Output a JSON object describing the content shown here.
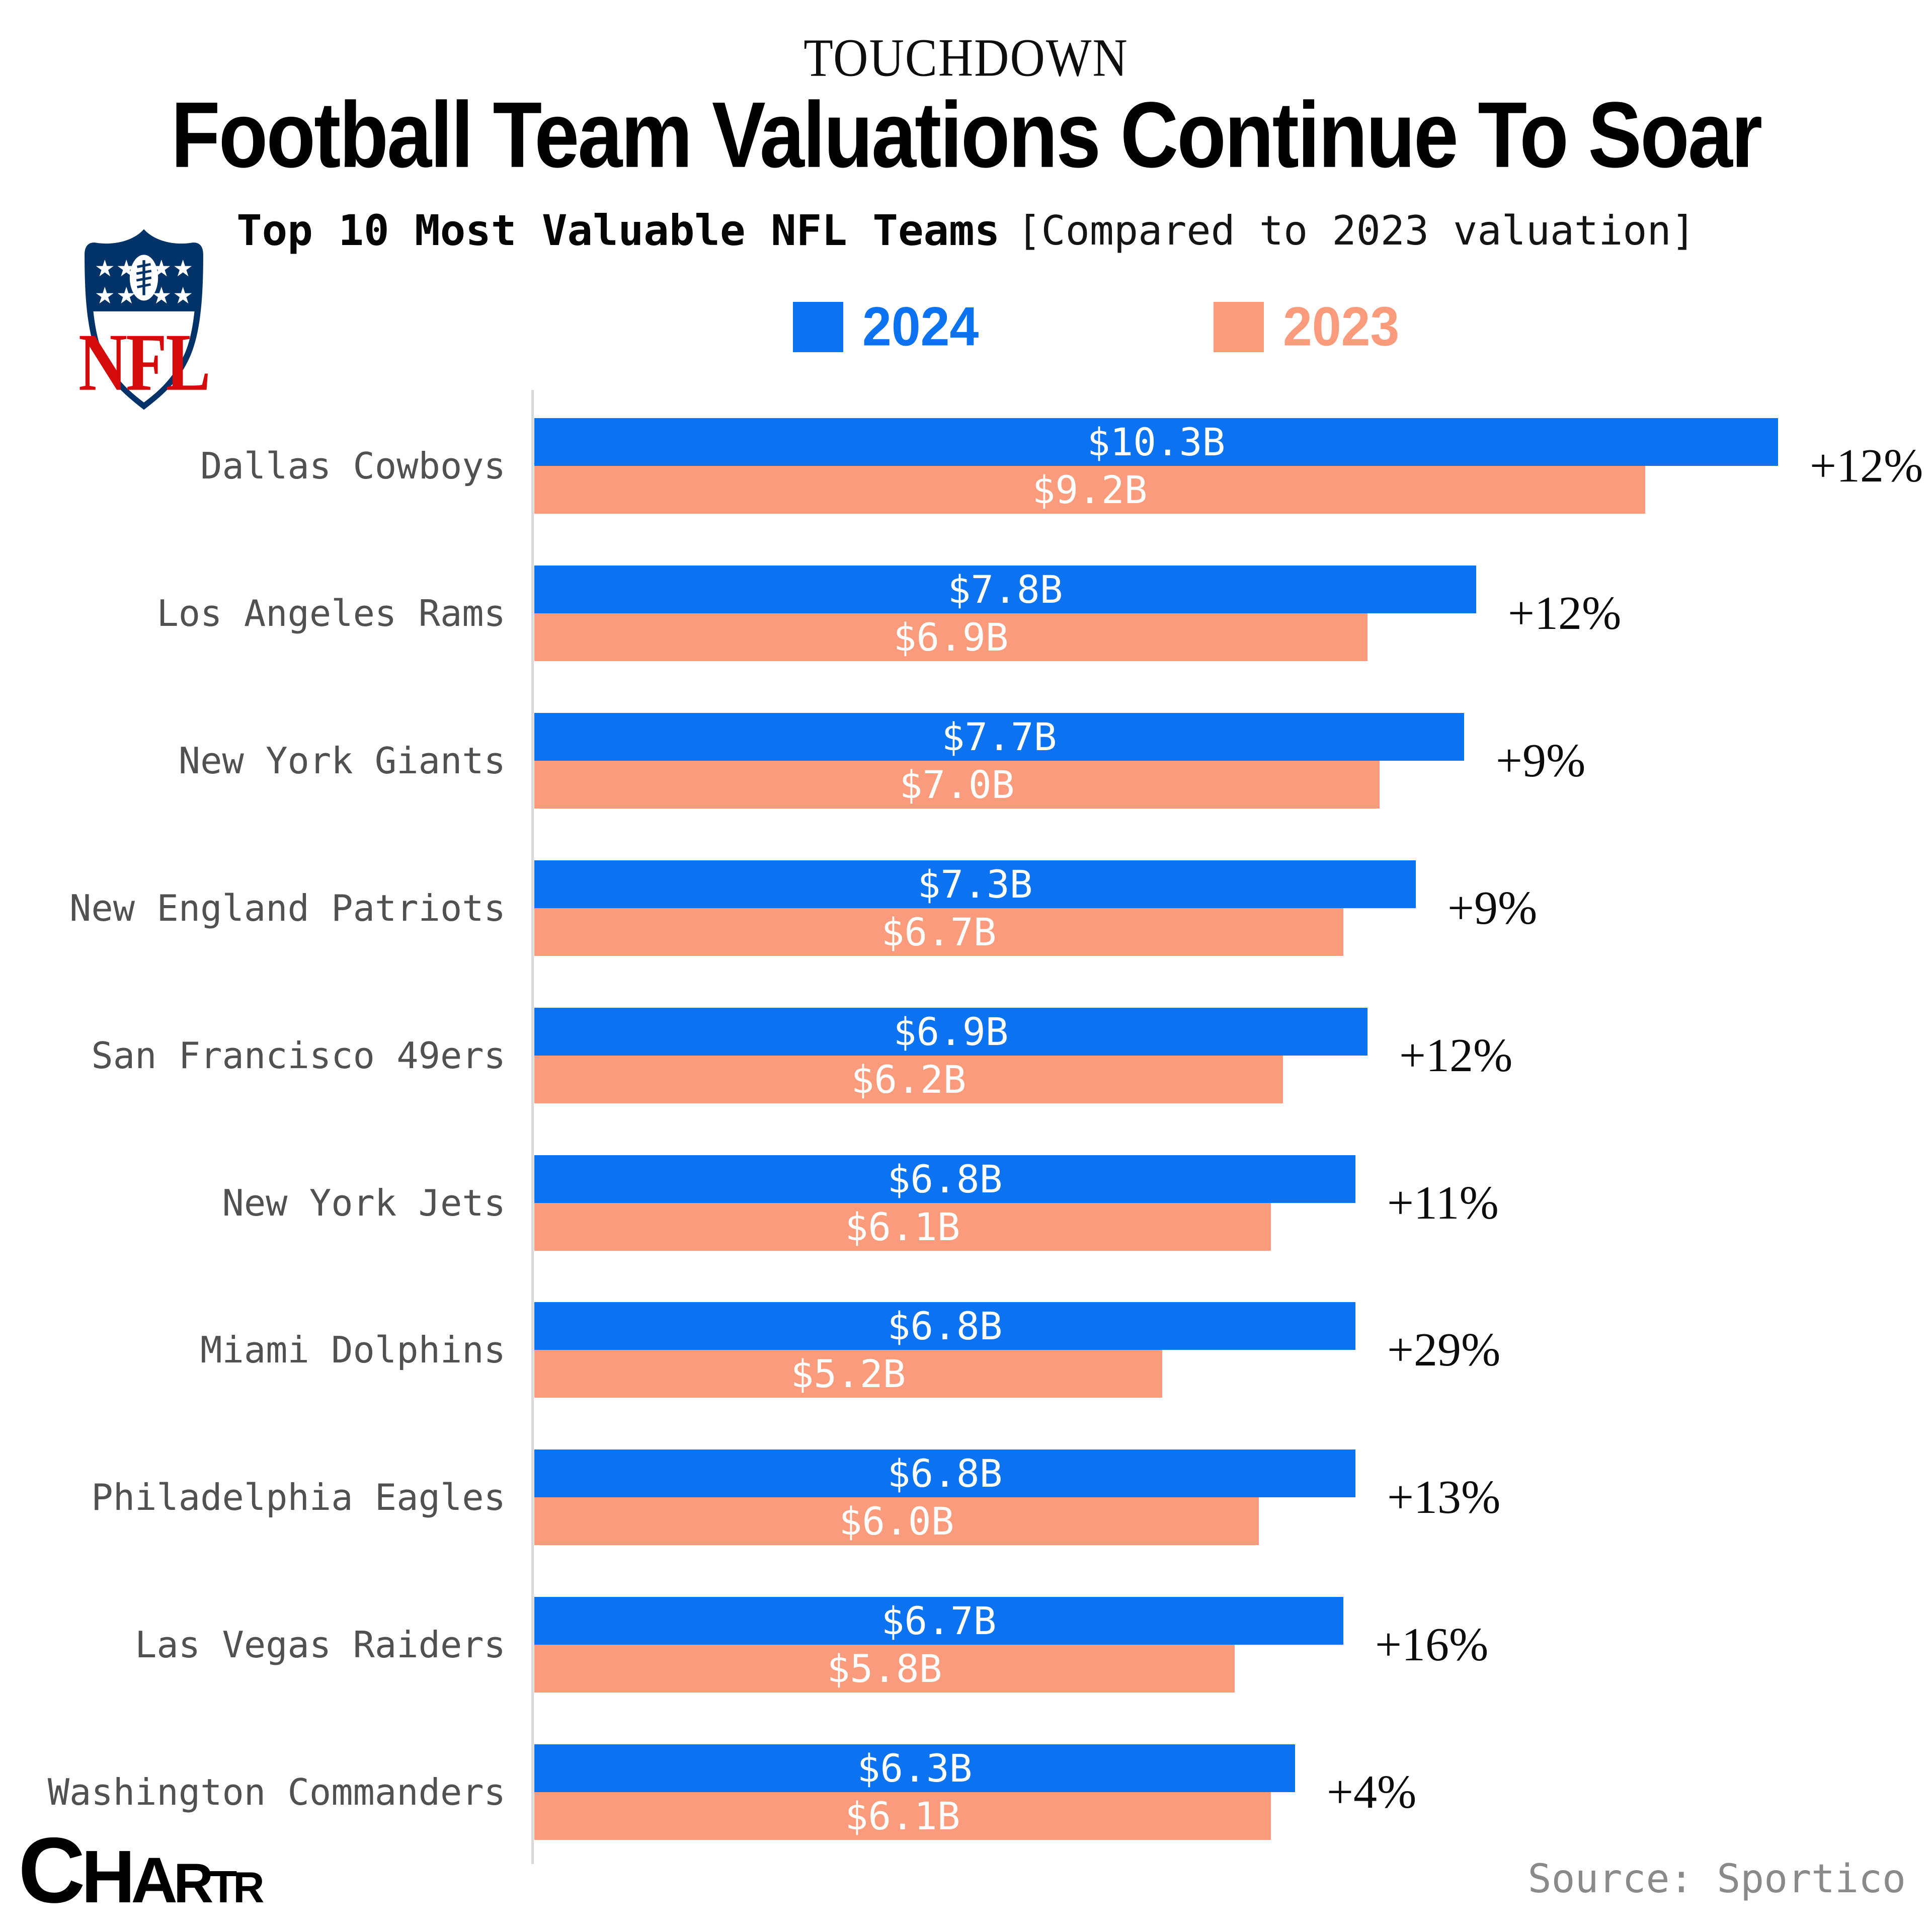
{
  "header": {
    "kicker": "TOUCHDOWN",
    "title": "Football Team Valuations Continue To Soar",
    "subtitle_bold": "Top 10 Most Valuable NFL Teams",
    "subtitle_note": "[Compared to 2023 valuation]"
  },
  "legend": {
    "items": [
      {
        "label": "2024",
        "color": "#0b72f1"
      },
      {
        "label": "2023",
        "color": "#fa9b7c"
      }
    ]
  },
  "chart_data": {
    "type": "bar",
    "orientation": "horizontal",
    "title": "Top 10 Most Valuable NFL Teams [Compared to 2023 valuation]",
    "unit": "billion USD",
    "xlim": [
      0,
      11.6
    ],
    "grid": false,
    "legend_position": "top",
    "categories": [
      "Dallas Cowboys",
      "Los Angeles Rams",
      "New York Giants",
      "New England Patriots",
      "San Francisco 49ers",
      "New York Jets",
      "Miami Dolphins",
      "Philadelphia Eagles",
      "Las Vegas Raiders",
      "Washington Commanders"
    ],
    "series": [
      {
        "name": "2024",
        "color": "#0b72f1",
        "values": [
          10.3,
          7.8,
          7.7,
          7.3,
          6.9,
          6.8,
          6.8,
          6.8,
          6.7,
          6.3
        ],
        "labels": [
          "$10.3B",
          "$7.8B",
          "$7.7B",
          "$7.3B",
          "$6.9B",
          "$6.8B",
          "$6.8B",
          "$6.8B",
          "$6.7B",
          "$6.3B"
        ]
      },
      {
        "name": "2023",
        "color": "#fa9b7c",
        "values": [
          9.2,
          6.9,
          7.0,
          6.7,
          6.2,
          6.1,
          5.2,
          6.0,
          5.8,
          6.1
        ],
        "labels": [
          "$9.2B",
          "$6.9B",
          "$7.0B",
          "$6.7B",
          "$6.2B",
          "$6.1B",
          "$5.2B",
          "$6.0B",
          "$5.8B",
          "$6.1B"
        ]
      }
    ],
    "change_labels": [
      "+12%",
      "+12%",
      "+9%",
      "+9%",
      "+12%",
      "+11%",
      "+29%",
      "+13%",
      "+16%",
      "+4%"
    ]
  },
  "nfl_logo": {
    "wordmark": "NFL",
    "navy": "#013369",
    "red": "#d50a0a"
  },
  "footer": {
    "brand": "CHARTR",
    "brand_letters": [
      "C",
      "H",
      "A",
      "R",
      "T",
      "R"
    ],
    "source": "Source: Sportico"
  }
}
